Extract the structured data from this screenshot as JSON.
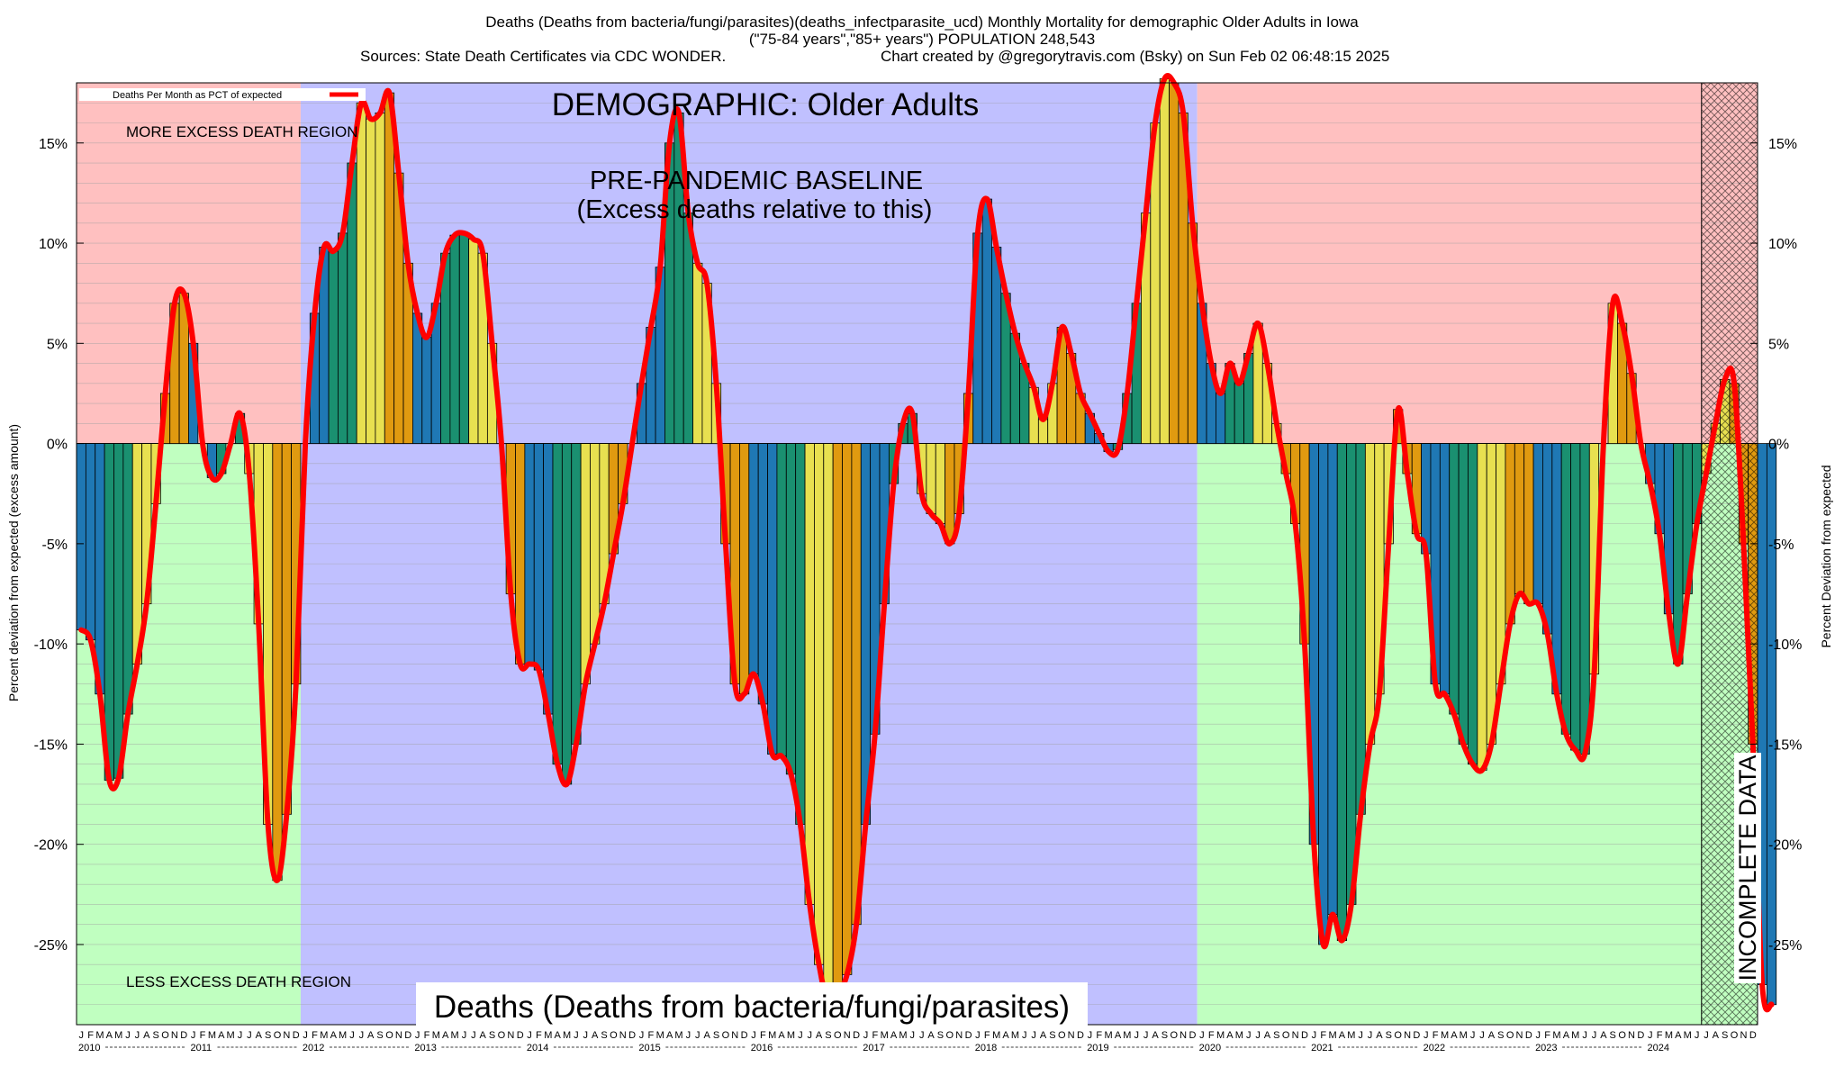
{
  "header": {
    "title_line1": "Deaths (Deaths from bacteria/fungi/parasites)(deaths_infectparasite_ucd) Monthly Mortality for demographic Older Adults in Iowa",
    "title_line2": "(\"75-84 years\",\"85+ years\") POPULATION 248,543",
    "sources": "Sources: State Death Certificates via CDC WONDER.",
    "credit": "Chart created by @gregorytravis.com (Bsky) on Sun Feb 02 06:48:15 2025"
  },
  "legend": {
    "label": "Deaths Per Month as PCT of expected"
  },
  "annotations": {
    "demographic": "DEMOGRAPHIC: Older Adults",
    "baseline_line1": "PRE-PANDEMIC BASELINE",
    "baseline_line2": "(Excess deaths relative to this)",
    "more_excess": "MORE EXCESS DEATH REGION",
    "less_excess": "LESS EXCESS DEATH REGION",
    "bottom_label": "Deaths (Deaths from bacteria/fungi/parasites)",
    "incomplete": "INCOMPLETE DATA"
  },
  "axes": {
    "left_label": "Percent deviation from expected (excess amount)",
    "right_label": "Percent Deviation from expected"
  },
  "colors": {
    "excess_region": "#ffc0c0",
    "deficit_region": "#c0ffc0",
    "baseline_region": "#c0c0ff",
    "line": "#ff0000",
    "bar_q1": "#1f78b4",
    "bar_q2": "#1a9070",
    "bar_q3": "#e8e050",
    "bar_q4": "#e09a10"
  },
  "chart_data": {
    "type": "bar",
    "title": "Deaths (Deaths from bacteria/fungi/parasites)(deaths_infectparasite_ucd) Monthly Mortality for demographic Older Adults in Iowa",
    "ylabel": "Percent deviation from expected (excess amount)",
    "ylim": [
      -29,
      18
    ],
    "yticks": [
      -25,
      -20,
      -15,
      -10,
      -5,
      0,
      5,
      10,
      15
    ],
    "ytick_labels": [
      "-25%",
      "-20%",
      "-15%",
      "-10%",
      "-5%",
      "0%",
      "5%",
      "10%",
      "15%"
    ],
    "grid": true,
    "legend_position": "top-left",
    "month_letters": [
      "J",
      "F",
      "M",
      "A",
      "M",
      "J",
      "J",
      "A",
      "S",
      "O",
      "N",
      "D"
    ],
    "years": [
      2010,
      2011,
      2012,
      2013,
      2014,
      2015,
      2016,
      2017,
      2018,
      2019,
      2020,
      2021,
      2022,
      2023,
      2024
    ],
    "baseline_period": [
      "2012-01",
      "2019-12"
    ],
    "incomplete_from": "2024-07",
    "series": [
      {
        "name": "Deaths Per Month as PCT of expected",
        "values": [
          -9.3,
          -9.8,
          -12.5,
          -16.8,
          -16.7,
          -13.5,
          -11.0,
          -8.0,
          -3.0,
          2.5,
          7.0,
          7.5,
          5.0,
          0.0,
          -1.7,
          -1.5,
          0.0,
          1.5,
          -1.5,
          -9.0,
          -19.0,
          -21.8,
          -18.5,
          -12.0,
          0.0,
          6.5,
          9.8,
          9.6,
          10.5,
          14.0,
          17.0,
          16.2,
          16.5,
          17.5,
          13.5,
          9.0,
          6.5,
          5.3,
          7.0,
          9.5,
          10.4,
          10.5,
          10.2,
          9.5,
          5.0,
          0.0,
          -7.5,
          -11.0,
          -11.0,
          -11.3,
          -13.5,
          -16.0,
          -17.0,
          -15.0,
          -12.0,
          -10.0,
          -8.0,
          -5.5,
          -3.0,
          0.0,
          3.0,
          5.8,
          8.8,
          15.0,
          16.5,
          11.5,
          9.0,
          8.0,
          3.0,
          -5.0,
          -12.0,
          -12.5,
          -11.5,
          -13.0,
          -15.5,
          -15.6,
          -16.5,
          -19.0,
          -23.0,
          -26.0,
          -28.0,
          -27.5,
          -26.5,
          -24.0,
          -19.0,
          -14.5,
          -8.0,
          -2.0,
          1.0,
          1.5,
          -2.5,
          -3.5,
          -4.0,
          -5.0,
          -3.5,
          2.5,
          10.5,
          12.2,
          9.8,
          7.5,
          5.5,
          4.0,
          2.8,
          1.2,
          3.0,
          5.8,
          4.5,
          2.5,
          1.5,
          0.5,
          -0.4,
          -0.3,
          2.5,
          7.0,
          11.5,
          16.0,
          18.2,
          18.0,
          16.5,
          11.0,
          7.0,
          4.0,
          2.5,
          4.0,
          3.0,
          4.5,
          6.0,
          4.0,
          1.0,
          -1.5,
          -4.0,
          -10.0,
          -20.0,
          -25.0,
          -23.5,
          -24.8,
          -23.0,
          -18.5,
          -15.0,
          -12.5,
          -5.0,
          1.7,
          -1.5,
          -4.5,
          -5.5,
          -12.0,
          -12.5,
          -13.5,
          -15.0,
          -16.0,
          -16.3,
          -15.0,
          -12.0,
          -9.0,
          -7.5,
          -8.0,
          -8.0,
          -9.5,
          -12.5,
          -14.5,
          -15.3,
          -15.5,
          -11.5,
          0.0,
          7.0,
          6.0,
          3.5,
          0.0,
          -2.0,
          -4.5,
          -8.5,
          -11.0,
          -7.5,
          -4.0,
          -1.5,
          1.0,
          3.2,
          3.0,
          -5.0,
          -15.0,
          -27.0,
          -28.0
        ]
      }
    ]
  }
}
